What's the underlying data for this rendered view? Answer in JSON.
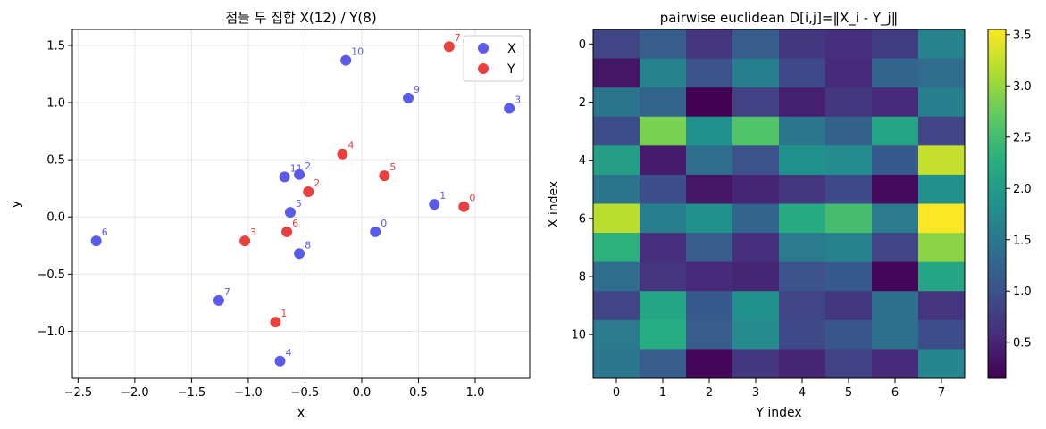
{
  "chart_data": [
    {
      "type": "scatter",
      "title": "점들 두 집합 X(12) / Y(8)",
      "xlabel": "x",
      "ylabel": "y",
      "xlim": [
        -2.55,
        1.48
      ],
      "ylim": [
        -1.41,
        1.64
      ],
      "xticks": [
        -2.5,
        -2.0,
        -1.5,
        -1.0,
        -0.5,
        0.0,
        0.5,
        1.0
      ],
      "xtick_labels": [
        "−2.5",
        "−2.0",
        "−1.5",
        "−1.0",
        "−0.5",
        "0.0",
        "0.5",
        "1.0"
      ],
      "yticks": [
        -1.0,
        -0.5,
        0.0,
        0.5,
        1.0,
        1.5
      ],
      "ytick_labels": [
        "−1.0",
        "−0.5",
        "0.0",
        "0.5",
        "1.0",
        "1.5"
      ],
      "grid": true,
      "legend_position": "top-right",
      "series": [
        {
          "name": "X",
          "color": "#5b5bea",
          "points": [
            {
              "label": "0",
              "x": 0.12,
              "y": -0.13
            },
            {
              "label": "1",
              "x": 0.64,
              "y": 0.11
            },
            {
              "label": "2",
              "x": -0.55,
              "y": 0.37
            },
            {
              "label": "3",
              "x": 1.3,
              "y": 0.95
            },
            {
              "label": "4",
              "x": -0.72,
              "y": -1.26
            },
            {
              "label": "5",
              "x": -0.63,
              "y": 0.04
            },
            {
              "label": "6",
              "x": -2.34,
              "y": -0.21
            },
            {
              "label": "7",
              "x": -1.26,
              "y": -0.73
            },
            {
              "label": "8",
              "x": -0.55,
              "y": -0.32
            },
            {
              "label": "9",
              "x": 0.41,
              "y": 1.04
            },
            {
              "label": "10",
              "x": -0.14,
              "y": 1.37
            },
            {
              "label": "11",
              "x": -0.68,
              "y": 0.35
            }
          ]
        },
        {
          "name": "Y",
          "color": "#e83f3f",
          "points": [
            {
              "label": "0",
              "x": 0.9,
              "y": 0.09
            },
            {
              "label": "1",
              "x": -0.76,
              "y": -0.92
            },
            {
              "label": "2",
              "x": -0.47,
              "y": 0.22
            },
            {
              "label": "3",
              "x": -1.03,
              "y": -0.21
            },
            {
              "label": "4",
              "x": -0.17,
              "y": 0.55
            },
            {
              "label": "5",
              "x": 0.2,
              "y": 0.36
            },
            {
              "label": "6",
              "x": -0.66,
              "y": -0.13
            },
            {
              "label": "7",
              "x": 0.77,
              "y": 1.49
            }
          ]
        }
      ]
    },
    {
      "type": "heatmap",
      "title": "pairwise euclidean D[i,j]=‖X_i - Y_j‖",
      "xlabel": "Y index",
      "ylabel": "X index",
      "colormap": "viridis",
      "vmin": 0.15,
      "vmax": 3.55,
      "x_categories": [
        0,
        1,
        2,
        3,
        4,
        5,
        6,
        7
      ],
      "xtick_labels": [
        "0",
        "1",
        "2",
        "3",
        "4",
        "5",
        "6",
        "7"
      ],
      "ytick_labels": [
        "0",
        "2",
        "4",
        "6",
        "8",
        "10"
      ],
      "ytick_rows": [
        0,
        2,
        4,
        6,
        8,
        10
      ],
      "colorbar_ticks": [
        0.5,
        1.0,
        1.5,
        2.0,
        2.5,
        3.0,
        3.5
      ],
      "colorbar_tick_labels": [
        "0.5",
        "1.0",
        "1.5",
        "2.0",
        "2.5",
        "3.0",
        "3.5"
      ],
      "values": [
        [
          0.85,
          1.15,
          0.65,
          1.15,
          0.7,
          0.6,
          0.75,
          1.65
        ],
        [
          0.35,
          1.65,
          1.0,
          1.6,
          0.9,
          0.55,
          1.25,
          1.35
        ],
        [
          1.45,
          1.25,
          0.15,
          0.8,
          0.45,
          0.7,
          0.55,
          1.6
        ],
        [
          0.95,
          2.85,
          1.85,
          2.6,
          1.5,
          1.2,
          2.15,
          0.85
        ],
        [
          2.05,
          0.4,
          1.35,
          1.0,
          1.85,
          1.8,
          1.1,
          3.25
        ],
        [
          1.45,
          0.95,
          0.35,
          0.5,
          0.7,
          0.9,
          0.25,
          1.85
        ],
        [
          3.2,
          1.6,
          1.85,
          1.25,
          2.2,
          2.5,
          1.55,
          3.55
        ],
        [
          2.3,
          0.6,
          1.15,
          0.6,
          1.55,
          1.65,
          0.85,
          2.95
        ],
        [
          1.35,
          0.65,
          0.55,
          0.5,
          1.0,
          1.1,
          0.2,
          2.15
        ],
        [
          0.85,
          2.15,
          1.1,
          1.85,
          0.85,
          0.7,
          1.4,
          0.65
        ],
        [
          1.55,
          2.25,
          1.15,
          1.75,
          0.9,
          1.05,
          1.4,
          0.95
        ],
        [
          1.5,
          1.15,
          0.2,
          0.7,
          0.5,
          0.8,
          0.55,
          1.7
        ]
      ]
    }
  ]
}
